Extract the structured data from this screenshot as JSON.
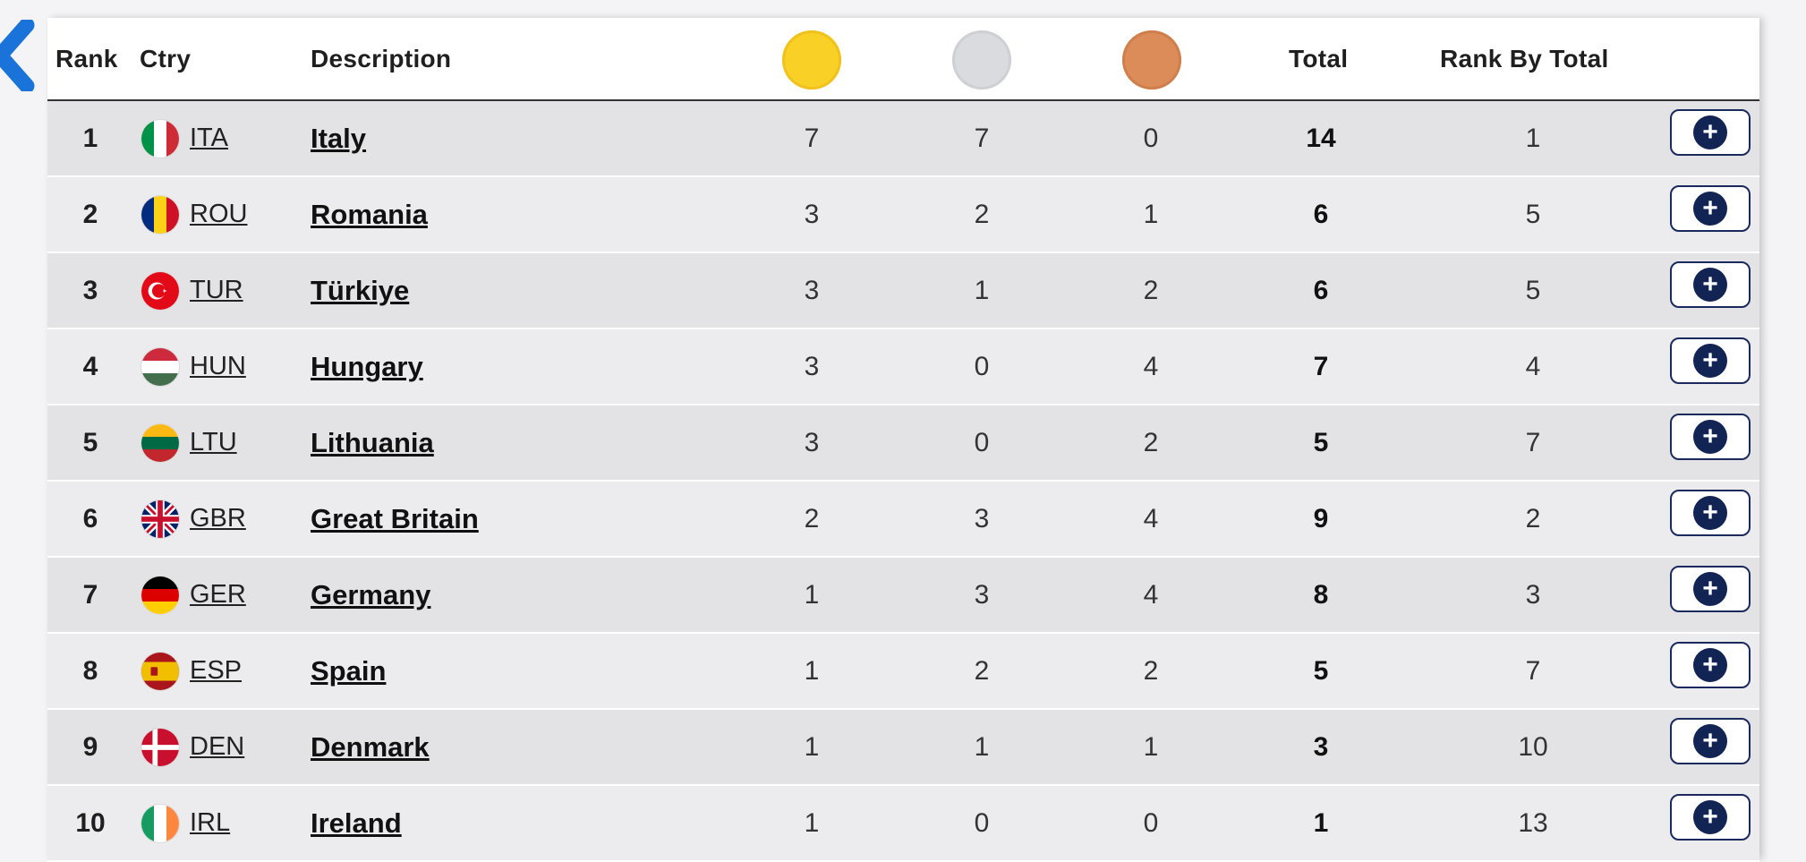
{
  "header": {
    "rank": "Rank",
    "country": "Ctry",
    "description": "Description",
    "total": "Total",
    "rank_by_total": "Rank By Total",
    "medal_colors": {
      "gold": "#f8d026",
      "silver": "#dadbde",
      "bronze": "#db8c58"
    }
  },
  "rows": [
    {
      "rank": "1",
      "code": "ITA",
      "name": "Italy",
      "gold": "7",
      "silver": "7",
      "bronze": "0",
      "total": "14",
      "rank_by_total": "1"
    },
    {
      "rank": "2",
      "code": "ROU",
      "name": "Romania",
      "gold": "3",
      "silver": "2",
      "bronze": "1",
      "total": "6",
      "rank_by_total": "5"
    },
    {
      "rank": "3",
      "code": "TUR",
      "name": "Türkiye",
      "gold": "3",
      "silver": "1",
      "bronze": "2",
      "total": "6",
      "rank_by_total": "5"
    },
    {
      "rank": "4",
      "code": "HUN",
      "name": "Hungary",
      "gold": "3",
      "silver": "0",
      "bronze": "4",
      "total": "7",
      "rank_by_total": "4"
    },
    {
      "rank": "5",
      "code": "LTU",
      "name": "Lithuania",
      "gold": "3",
      "silver": "0",
      "bronze": "2",
      "total": "5",
      "rank_by_total": "7"
    },
    {
      "rank": "6",
      "code": "GBR",
      "name": "Great Britain",
      "gold": "2",
      "silver": "3",
      "bronze": "4",
      "total": "9",
      "rank_by_total": "2"
    },
    {
      "rank": "7",
      "code": "GER",
      "name": "Germany",
      "gold": "1",
      "silver": "3",
      "bronze": "4",
      "total": "8",
      "rank_by_total": "3"
    },
    {
      "rank": "8",
      "code": "ESP",
      "name": "Spain",
      "gold": "1",
      "silver": "2",
      "bronze": "2",
      "total": "5",
      "rank_by_total": "7"
    },
    {
      "rank": "9",
      "code": "DEN",
      "name": "Denmark",
      "gold": "1",
      "silver": "1",
      "bronze": "1",
      "total": "3",
      "rank_by_total": "10"
    },
    {
      "rank": "10",
      "code": "IRL",
      "name": "Ireland",
      "gold": "1",
      "silver": "0",
      "bronze": "0",
      "total": "1",
      "rank_by_total": "13"
    }
  ],
  "icons": {
    "back": "chevron-left-icon",
    "expand": "plus-icon",
    "flags": [
      "italy-flag-icon",
      "romania-flag-icon",
      "turkey-flag-icon",
      "hungary-flag-icon",
      "lithuania-flag-icon",
      "great-britain-flag-icon",
      "germany-flag-icon",
      "spain-flag-icon",
      "denmark-flag-icon",
      "ireland-flag-icon"
    ]
  },
  "colors": {
    "accent_blue": "#1a73d9",
    "button_navy": "#122454"
  }
}
